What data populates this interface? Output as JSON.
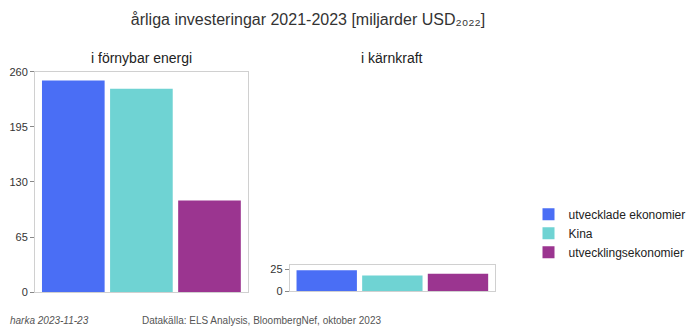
{
  "title": "årliga investeringar 2021-2023 [miljarder USD₂₀₂₂]",
  "footer": [
    "harka 2023-11-23",
    "Datakälla: ELS Analysis, BloombergNef, oktober 2023"
  ],
  "chart_data": [
    {
      "type": "bar",
      "title": "i förnybar energi",
      "categories": [
        null
      ],
      "series": [
        {
          "name": "utvecklade ekonomier",
          "color": "#4a6ef5",
          "values": [
            250
          ]
        },
        {
          "name": "Kina",
          "color": "#6fd3d3",
          "values": [
            240
          ]
        },
        {
          "name": "utvecklingsekonomier",
          "color": "#9b3590",
          "values": [
            108
          ]
        }
      ],
      "ylim": [
        0,
        260
      ],
      "yticks": [
        0,
        65,
        130,
        195,
        260
      ],
      "grid": false,
      "tick_labels": "y",
      "legend": "right"
    },
    {
      "type": "bar",
      "title": "i kärnkraft",
      "categories": [
        null
      ],
      "series": [
        {
          "name": "utvecklade ekonomier",
          "color": "#4a6ef5",
          "values": [
            24
          ]
        },
        {
          "name": "Kina",
          "color": "#6fd3d3",
          "values": [
            18
          ]
        },
        {
          "name": "utvecklingsekonomier",
          "color": "#9b3590",
          "values": [
            20
          ]
        }
      ],
      "ylim": [
        0,
        30
      ],
      "yticks": [
        0,
        25
      ],
      "grid": false,
      "tick_labels": "y",
      "legend": "right"
    }
  ]
}
